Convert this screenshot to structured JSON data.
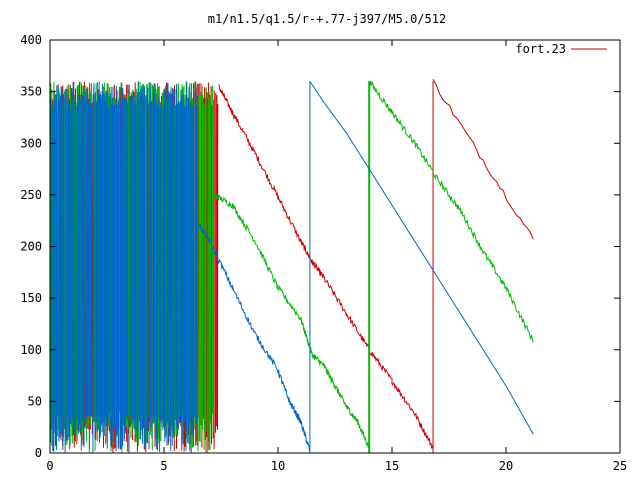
{
  "chart_data": {
    "type": "line",
    "title": "m1/n1.5/q1.5/r-+.77-j397/M5.0/512",
    "xlabel": "",
    "ylabel": "",
    "xlim": [
      0,
      25
    ],
    "ylim": [
      0,
      400
    ],
    "x_ticks": [
      0,
      5,
      10,
      15,
      20,
      25
    ],
    "y_ticks": [
      0,
      50,
      100,
      150,
      200,
      250,
      300,
      350,
      400
    ],
    "grid": false,
    "legend": {
      "placement": "top-right",
      "entries": [
        {
          "label": "fort.23",
          "color": "#cc0000"
        }
      ]
    },
    "series": [
      {
        "color": "#cc0000",
        "description": "red",
        "chaotic_range": [
          0.0,
          7.4
        ],
        "segments": [
          {
            "points": [
              [
                7.4,
                355
              ],
              [
                8.0,
                330
              ],
              [
                9.0,
                290
              ],
              [
                10.0,
                248
              ],
              [
                11.0,
                205
              ],
              [
                11.5,
                185
              ],
              [
                12.0,
                170
              ],
              [
                13.0,
                135
              ],
              [
                14.0,
                100
              ],
              [
                15.0,
                70
              ],
              [
                16.0,
                38
              ],
              [
                16.8,
                5
              ]
            ]
          },
          {
            "points": [
              [
                16.8,
                360
              ],
              [
                21.2,
                207
              ]
            ]
          }
        ]
      },
      {
        "color": "#00bb00",
        "description": "green",
        "chaotic_range": [
          0.0,
          7.2
        ],
        "segments": [
          {
            "points": [
              [
                7.2,
                250
              ],
              [
                8.0,
                240
              ],
              [
                9.0,
                205
              ],
              [
                10.0,
                160
              ],
              [
                11.0,
                130
              ],
              [
                11.5,
                95
              ],
              [
                12.0,
                85
              ],
              [
                12.5,
                65
              ],
              [
                13.0,
                45
              ],
              [
                13.5,
                30
              ],
              [
                14.0,
                5
              ]
            ]
          },
          {
            "points": [
              [
                14.0,
                360
              ],
              [
                15.0,
                330
              ],
              [
                16.0,
                300
              ],
              [
                17.0,
                265
              ],
              [
                18.0,
                235
              ],
              [
                19.0,
                195
              ],
              [
                20.0,
                160
              ],
              [
                21.2,
                108
              ]
            ]
          }
        ]
      },
      {
        "color": "#0066cc",
        "description": "blue",
        "chaotic_range": [
          0.0,
          6.5
        ],
        "segments": [
          {
            "points": [
              [
                6.5,
                222
              ],
              [
                7.0,
                205
              ],
              [
                8.0,
                160
              ],
              [
                9.0,
                115
              ],
              [
                10.0,
                80
              ],
              [
                10.5,
                50
              ],
              [
                11.0,
                30
              ],
              [
                11.4,
                2
              ]
            ]
          },
          {
            "points": [
              [
                11.4,
                360
              ],
              [
                12.0,
                340
              ],
              [
                13.0,
                310
              ],
              [
                14.0,
                275
              ],
              [
                15.0,
                240
              ],
              [
                16.0,
                205
              ],
              [
                17.0,
                170
              ],
              [
                18.0,
                135
              ],
              [
                19.0,
                100
              ],
              [
                20.0,
                65
              ],
              [
                21.2,
                18
              ]
            ]
          }
        ]
      }
    ]
  }
}
